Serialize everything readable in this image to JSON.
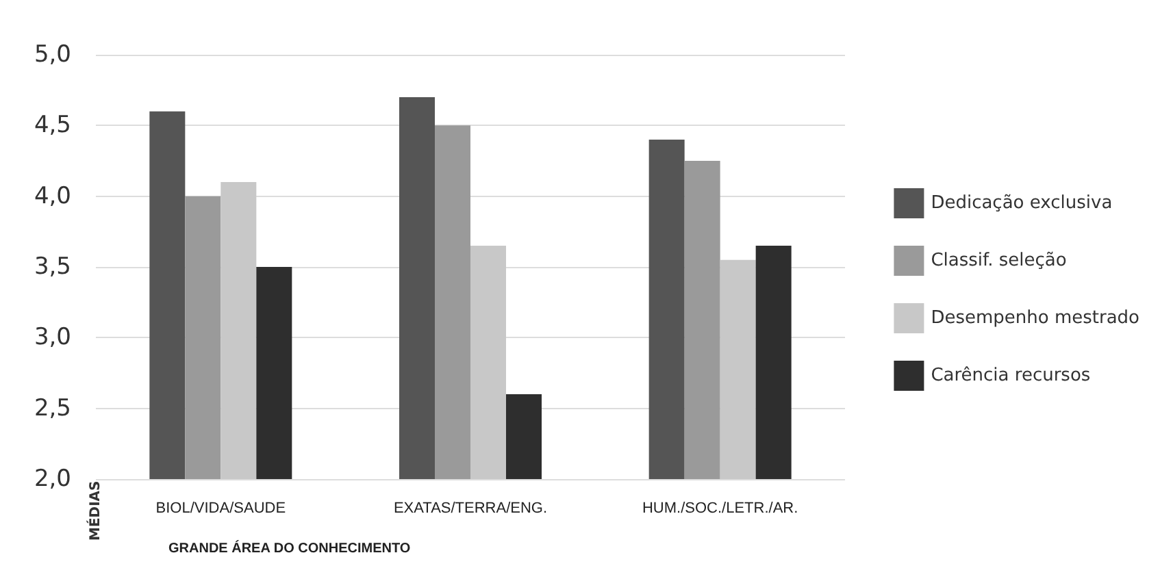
{
  "chart_data": {
    "type": "bar",
    "xlabel": "GRANDE ÁREA DO CONHECIMENTO",
    "ylabel": "MÉDIAS",
    "categories": [
      "BIOL/VIDA/SAUDE",
      "EXATAS/TERRA/ENG.",
      "HUM./SOC./LETR./AR."
    ],
    "series": [
      {
        "name": "Dedicação exclusiva",
        "color": "#555555",
        "values": [
          4.6,
          4.7,
          4.4
        ]
      },
      {
        "name": "Classif. seleção",
        "color": "#9a9a9a",
        "values": [
          4.0,
          4.5,
          4.25
        ]
      },
      {
        "name": "Desempenho mestrado",
        "color": "#c8c8c8",
        "values": [
          4.1,
          3.65,
          3.55
        ]
      },
      {
        "name": "Carência recursos",
        "color": "#2e2e2e",
        "values": [
          3.5,
          2.6,
          3.65
        ]
      }
    ],
    "ylim": [
      2.0,
      5.0
    ],
    "yticks": [
      {
        "value": 2.0,
        "label": "2,0"
      },
      {
        "value": 2.5,
        "label": "2,5"
      },
      {
        "value": 3.0,
        "label": "3,0"
      },
      {
        "value": 3.5,
        "label": "3,5"
      },
      {
        "value": 4.0,
        "label": "4,0"
      },
      {
        "value": 4.5,
        "label": "4,5"
      },
      {
        "value": 5.0,
        "label": "5,0"
      }
    ],
    "grid": "y",
    "legend": "right"
  }
}
